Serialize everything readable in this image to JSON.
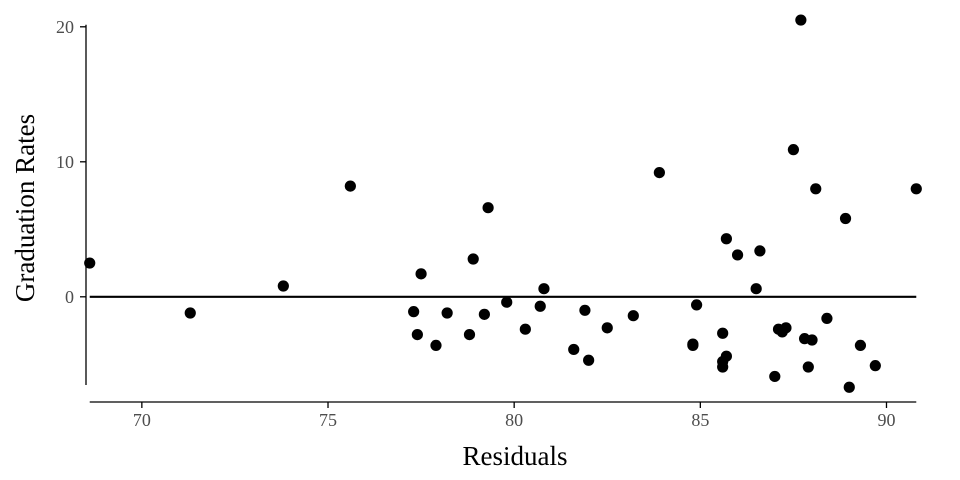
{
  "chart_data": {
    "type": "scatter",
    "title": "",
    "xlabel": "Residuals",
    "ylabel": "Graduation Rates",
    "xlim": [
      68.5,
      90.9
    ],
    "ylim": [
      -7.2,
      20.8
    ],
    "x_ticks": [
      70,
      75,
      80,
      85,
      90
    ],
    "y_ticks": [
      0,
      10,
      20
    ],
    "x_tick_labels": [
      "70",
      "75",
      "80",
      "85",
      "90"
    ],
    "y_tick_labels": [
      "0",
      "10",
      "20"
    ],
    "grid": false,
    "legend": "none",
    "reference_line": {
      "y": 0,
      "x_from": 68.6,
      "x_to": 90.8
    },
    "point_color": "#000000",
    "points": [
      {
        "x": 68.6,
        "y": 2.5
      },
      {
        "x": 71.3,
        "y": -1.2
      },
      {
        "x": 73.8,
        "y": 0.8
      },
      {
        "x": 75.6,
        "y": 8.2
      },
      {
        "x": 77.3,
        "y": -1.1
      },
      {
        "x": 77.4,
        "y": -2.8
      },
      {
        "x": 77.5,
        "y": 1.7
      },
      {
        "x": 77.9,
        "y": -3.6
      },
      {
        "x": 78.2,
        "y": -1.2
      },
      {
        "x": 78.8,
        "y": -2.8
      },
      {
        "x": 78.9,
        "y": 2.8
      },
      {
        "x": 79.2,
        "y": -1.3
      },
      {
        "x": 79.3,
        "y": 6.6
      },
      {
        "x": 79.8,
        "y": -0.4
      },
      {
        "x": 80.3,
        "y": -2.4
      },
      {
        "x": 80.7,
        "y": -0.7
      },
      {
        "x": 80.8,
        "y": 0.6
      },
      {
        "x": 81.6,
        "y": -3.9
      },
      {
        "x": 81.9,
        "y": -1.0
      },
      {
        "x": 82.0,
        "y": -4.7
      },
      {
        "x": 82.5,
        "y": -2.3
      },
      {
        "x": 83.2,
        "y": -1.4
      },
      {
        "x": 83.9,
        "y": 9.2
      },
      {
        "x": 84.8,
        "y": -3.6
      },
      {
        "x": 84.8,
        "y": -3.5
      },
      {
        "x": 84.9,
        "y": -0.6
      },
      {
        "x": 85.6,
        "y": -2.7
      },
      {
        "x": 85.6,
        "y": -4.8
      },
      {
        "x": 85.6,
        "y": -5.2
      },
      {
        "x": 85.7,
        "y": -4.4
      },
      {
        "x": 85.7,
        "y": 4.3
      },
      {
        "x": 86.0,
        "y": 3.1
      },
      {
        "x": 86.5,
        "y": 0.6
      },
      {
        "x": 86.6,
        "y": 3.4
      },
      {
        "x": 87.0,
        "y": -5.9
      },
      {
        "x": 87.1,
        "y": -2.4
      },
      {
        "x": 87.2,
        "y": -2.6
      },
      {
        "x": 87.3,
        "y": -2.3
      },
      {
        "x": 87.5,
        "y": 10.9
      },
      {
        "x": 87.7,
        "y": 20.5
      },
      {
        "x": 87.8,
        "y": -3.1
      },
      {
        "x": 87.9,
        "y": -5.2
      },
      {
        "x": 88.0,
        "y": -3.2
      },
      {
        "x": 88.1,
        "y": 8.0
      },
      {
        "x": 88.4,
        "y": -1.6
      },
      {
        "x": 88.9,
        "y": 5.8
      },
      {
        "x": 89.0,
        "y": -6.7
      },
      {
        "x": 89.3,
        "y": -3.6
      },
      {
        "x": 89.7,
        "y": -5.1
      },
      {
        "x": 90.8,
        "y": 8.0
      }
    ]
  }
}
